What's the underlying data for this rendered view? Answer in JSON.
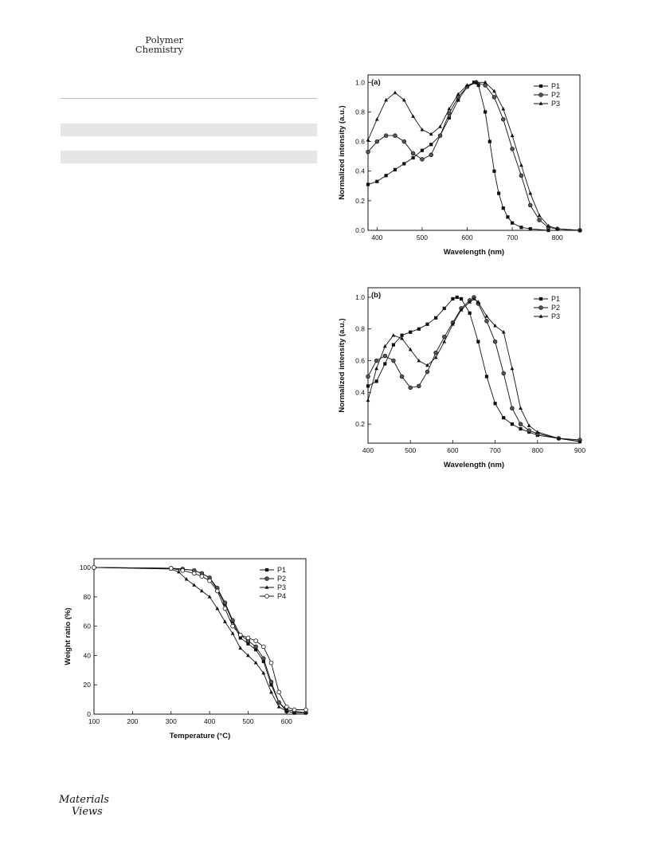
{
  "header": {
    "journal_line1": "Polymer",
    "journal_line2": "Chemistry"
  },
  "footer": {
    "logo_line1": "Materials",
    "logo_line2": "Views"
  },
  "chart_data": [
    {
      "id": "a",
      "type": "line",
      "panel_label": "(a)",
      "xlabel": "Wavelength (nm)",
      "ylabel": "Normalized intensity (a.u.)",
      "xlim": [
        380,
        850
      ],
      "ylim": [
        0,
        1.05
      ],
      "xticks": [
        400,
        500,
        600,
        700,
        800
      ],
      "yticks": [
        0.0,
        0.2,
        0.4,
        0.6,
        0.8,
        1.0
      ],
      "legend": "top-right",
      "series": [
        {
          "name": "P1",
          "marker": "square",
          "points": [
            [
              380,
              0.31
            ],
            [
              400,
              0.33
            ],
            [
              420,
              0.37
            ],
            [
              440,
              0.41
            ],
            [
              460,
              0.45
            ],
            [
              480,
              0.49
            ],
            [
              500,
              0.54
            ],
            [
              520,
              0.58
            ],
            [
              540,
              0.64
            ],
            [
              560,
              0.76
            ],
            [
              580,
              0.88
            ],
            [
              600,
              0.97
            ],
            [
              615,
              1.0
            ],
            [
              625,
              0.98
            ],
            [
              640,
              0.8
            ],
            [
              650,
              0.6
            ],
            [
              660,
              0.4
            ],
            [
              670,
              0.25
            ],
            [
              680,
              0.15
            ],
            [
              690,
              0.09
            ],
            [
              700,
              0.05
            ],
            [
              720,
              0.02
            ],
            [
              740,
              0.01
            ],
            [
              780,
              0.0
            ],
            [
              850,
              0.0
            ]
          ]
        },
        {
          "name": "P2",
          "marker": "circle",
          "points": [
            [
              380,
              0.53
            ],
            [
              400,
              0.6
            ],
            [
              420,
              0.64
            ],
            [
              440,
              0.64
            ],
            [
              460,
              0.6
            ],
            [
              480,
              0.52
            ],
            [
              500,
              0.48
            ],
            [
              520,
              0.51
            ],
            [
              540,
              0.64
            ],
            [
              560,
              0.79
            ],
            [
              580,
              0.9
            ],
            [
              600,
              0.97
            ],
            [
              620,
              1.0
            ],
            [
              640,
              0.98
            ],
            [
              660,
              0.9
            ],
            [
              680,
              0.75
            ],
            [
              700,
              0.55
            ],
            [
              720,
              0.37
            ],
            [
              740,
              0.17
            ],
            [
              760,
              0.07
            ],
            [
              780,
              0.02
            ],
            [
              800,
              0.01
            ],
            [
              850,
              0.0
            ]
          ]
        },
        {
          "name": "P3",
          "marker": "triangle",
          "points": [
            [
              380,
              0.61
            ],
            [
              400,
              0.75
            ],
            [
              420,
              0.88
            ],
            [
              440,
              0.93
            ],
            [
              460,
              0.88
            ],
            [
              480,
              0.77
            ],
            [
              500,
              0.68
            ],
            [
              520,
              0.65
            ],
            [
              540,
              0.7
            ],
            [
              560,
              0.82
            ],
            [
              580,
              0.92
            ],
            [
              600,
              0.98
            ],
            [
              620,
              1.0
            ],
            [
              640,
              1.0
            ],
            [
              660,
              0.94
            ],
            [
              680,
              0.82
            ],
            [
              700,
              0.64
            ],
            [
              720,
              0.44
            ],
            [
              740,
              0.25
            ],
            [
              760,
              0.1
            ],
            [
              780,
              0.03
            ],
            [
              800,
              0.01
            ],
            [
              850,
              0.0
            ]
          ]
        }
      ]
    },
    {
      "id": "b",
      "type": "line",
      "panel_label": "(b)",
      "xlabel": "Wavelength (nm)",
      "ylabel": "Normalized intensity (a.u.)",
      "xlim": [
        400,
        900
      ],
      "ylim": [
        0.08,
        1.06
      ],
      "xticks": [
        400,
        500,
        600,
        700,
        800,
        900
      ],
      "yticks": [
        0.2,
        0.4,
        0.6,
        0.8,
        1.0
      ],
      "legend": "top-right",
      "series": [
        {
          "name": "P1",
          "marker": "square",
          "points": [
            [
              400,
              0.44
            ],
            [
              420,
              0.47
            ],
            [
              440,
              0.58
            ],
            [
              460,
              0.7
            ],
            [
              480,
              0.76
            ],
            [
              500,
              0.78
            ],
            [
              520,
              0.8
            ],
            [
              540,
              0.83
            ],
            [
              560,
              0.87
            ],
            [
              580,
              0.93
            ],
            [
              600,
              0.99
            ],
            [
              610,
              1.0
            ],
            [
              620,
              0.99
            ],
            [
              640,
              0.9
            ],
            [
              660,
              0.72
            ],
            [
              680,
              0.5
            ],
            [
              700,
              0.33
            ],
            [
              720,
              0.24
            ],
            [
              740,
              0.2
            ],
            [
              760,
              0.17
            ],
            [
              780,
              0.15
            ],
            [
              800,
              0.13
            ],
            [
              850,
              0.11
            ],
            [
              900,
              0.09
            ]
          ]
        },
        {
          "name": "P2",
          "marker": "circle",
          "points": [
            [
              400,
              0.5
            ],
            [
              420,
              0.6
            ],
            [
              440,
              0.63
            ],
            [
              460,
              0.6
            ],
            [
              480,
              0.5
            ],
            [
              500,
              0.43
            ],
            [
              520,
              0.44
            ],
            [
              540,
              0.53
            ],
            [
              560,
              0.65
            ],
            [
              580,
              0.75
            ],
            [
              600,
              0.84
            ],
            [
              620,
              0.93
            ],
            [
              640,
              0.98
            ],
            [
              650,
              1.0
            ],
            [
              660,
              0.96
            ],
            [
              680,
              0.85
            ],
            [
              700,
              0.72
            ],
            [
              720,
              0.52
            ],
            [
              740,
              0.3
            ],
            [
              760,
              0.2
            ],
            [
              780,
              0.16
            ],
            [
              800,
              0.14
            ],
            [
              850,
              0.11
            ],
            [
              900,
              0.1
            ]
          ]
        },
        {
          "name": "P3",
          "marker": "triangle",
          "points": [
            [
              400,
              0.35
            ],
            [
              420,
              0.55
            ],
            [
              440,
              0.69
            ],
            [
              460,
              0.76
            ],
            [
              480,
              0.74
            ],
            [
              500,
              0.67
            ],
            [
              520,
              0.6
            ],
            [
              540,
              0.57
            ],
            [
              560,
              0.62
            ],
            [
              580,
              0.72
            ],
            [
              600,
              0.83
            ],
            [
              620,
              0.92
            ],
            [
              640,
              0.97
            ],
            [
              650,
              0.99
            ],
            [
              660,
              0.97
            ],
            [
              680,
              0.88
            ],
            [
              700,
              0.82
            ],
            [
              720,
              0.78
            ],
            [
              740,
              0.55
            ],
            [
              760,
              0.3
            ],
            [
              780,
              0.19
            ],
            [
              800,
              0.15
            ],
            [
              850,
              0.11
            ],
            [
              900,
              0.09
            ]
          ]
        }
      ]
    },
    {
      "id": "tga",
      "type": "line",
      "panel_label": "",
      "xlabel": "Temperature (°C)",
      "ylabel": "Weight ratio (%)",
      "xlim": [
        100,
        650
      ],
      "ylim": [
        0,
        106
      ],
      "xticks": [
        100,
        200,
        300,
        400,
        500,
        600
      ],
      "yticks": [
        0,
        20,
        40,
        60,
        80,
        100
      ],
      "legend": "top-right",
      "series": [
        {
          "name": "P1",
          "marker": "square",
          "points": [
            [
              100,
              100
            ],
            [
              300,
              99.5
            ],
            [
              330,
              99
            ],
            [
              360,
              98
            ],
            [
              380,
              96
            ],
            [
              400,
              93
            ],
            [
              420,
              85
            ],
            [
              440,
              75
            ],
            [
              460,
              63
            ],
            [
              480,
              52
            ],
            [
              500,
              48
            ],
            [
              520,
              44
            ],
            [
              540,
              36
            ],
            [
              560,
              20
            ],
            [
              580,
              8
            ],
            [
              600,
              3
            ],
            [
              620,
              2
            ],
            [
              650,
              1
            ]
          ]
        },
        {
          "name": "P2",
          "marker": "circle",
          "points": [
            [
              100,
              100
            ],
            [
              300,
              99.5
            ],
            [
              330,
              99
            ],
            [
              360,
              98
            ],
            [
              380,
              96
            ],
            [
              400,
              93
            ],
            [
              420,
              86
            ],
            [
              440,
              76
            ],
            [
              460,
              64
            ],
            [
              480,
              54
            ],
            [
              500,
              50
            ],
            [
              520,
              46
            ],
            [
              540,
              38
            ],
            [
              560,
              22
            ],
            [
              580,
              8
            ],
            [
              600,
              2
            ],
            [
              620,
              1
            ],
            [
              650,
              1
            ]
          ]
        },
        {
          "name": "P3",
          "marker": "triangle",
          "points": [
            [
              100,
              100
            ],
            [
              300,
              99
            ],
            [
              320,
              97
            ],
            [
              340,
              92
            ],
            [
              360,
              88
            ],
            [
              380,
              84
            ],
            [
              400,
              80
            ],
            [
              420,
              72
            ],
            [
              440,
              63
            ],
            [
              460,
              55
            ],
            [
              480,
              45
            ],
            [
              500,
              40
            ],
            [
              520,
              35
            ],
            [
              540,
              28
            ],
            [
              560,
              15
            ],
            [
              580,
              5
            ],
            [
              600,
              2
            ],
            [
              620,
              1
            ],
            [
              650,
              1
            ]
          ]
        },
        {
          "name": "P4",
          "marker": "open-circle",
          "points": [
            [
              100,
              100
            ],
            [
              300,
              99.5
            ],
            [
              330,
              98
            ],
            [
              360,
              96
            ],
            [
              380,
              94
            ],
            [
              400,
              91
            ],
            [
              420,
              84
            ],
            [
              440,
              72
            ],
            [
              460,
              60
            ],
            [
              480,
              54
            ],
            [
              500,
              52
            ],
            [
              520,
              50
            ],
            [
              540,
              46
            ],
            [
              560,
              35
            ],
            [
              580,
              15
            ],
            [
              600,
              5
            ],
            [
              620,
              3
            ],
            [
              650,
              3
            ]
          ]
        }
      ]
    }
  ]
}
